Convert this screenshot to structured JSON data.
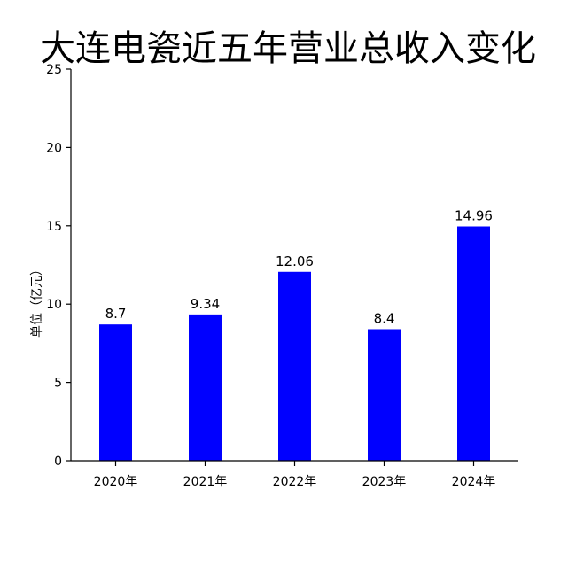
{
  "chart_data": {
    "type": "bar",
    "title": "大连电瓷近五年营业总收入变化",
    "ylabel": "单位（亿元）",
    "xlabel": "",
    "categories": [
      "2020年",
      "2021年",
      "2022年",
      "2023年",
      "2024年"
    ],
    "values": [
      8.7,
      9.34,
      12.06,
      8.4,
      14.96
    ],
    "value_labels": [
      "8.7",
      "9.34",
      "12.06",
      "8.4",
      "14.96"
    ],
    "ylim": [
      0,
      25
    ],
    "yticks": [
      0,
      5,
      10,
      15,
      20,
      25
    ],
    "grid": false,
    "bar_color": "#0000ff"
  }
}
